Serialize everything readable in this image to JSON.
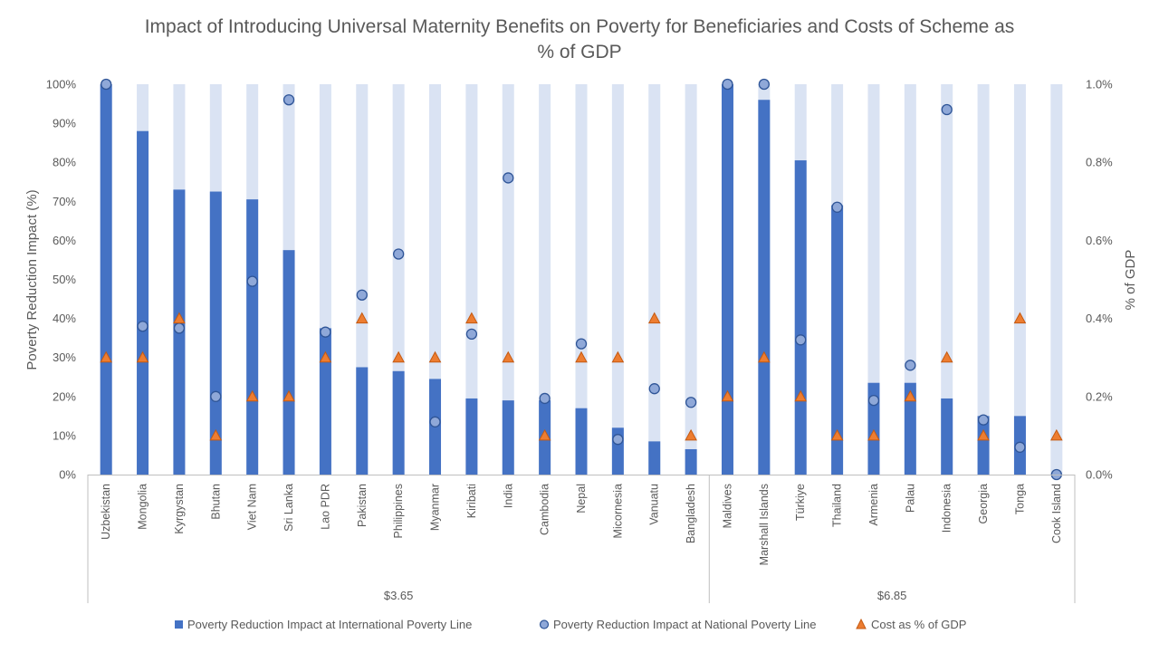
{
  "chart_data": {
    "type": "bar",
    "title": "Impact of Introducing Universal Maternity Benefits on Poverty for Beneficiaries and Costs of Scheme as % of GDP",
    "title_lines": [
      "Impact of Introducing Universal Maternity Benefits on Poverty for Beneficiaries and Costs of Scheme as",
      "% of GDP"
    ],
    "ylabel": "Poverty Reduction Impact (%)",
    "y2label": "% of GDP",
    "ylim": [
      0,
      100
    ],
    "y2lim": [
      0,
      1.0
    ],
    "yticks": [
      "0%",
      "10%",
      "20%",
      "30%",
      "40%",
      "50%",
      "60%",
      "70%",
      "80%",
      "90%",
      "100%"
    ],
    "y2ticks": [
      "0.0%",
      "0.2%",
      "0.4%",
      "0.6%",
      "0.8%",
      "1.0%"
    ],
    "groups": [
      {
        "label": "$3.65",
        "start": 0,
        "count": 17
      },
      {
        "label": "$6.85",
        "start": 17,
        "count": 10
      }
    ],
    "categories": [
      "Uzbekistan",
      "Mongolia",
      "Kyrgystan",
      "Bhutan",
      "Viet Nam",
      "Sri Lanka",
      "Lao PDR",
      "Pakistan",
      "Philippines",
      "Myanmar",
      "Kiribati",
      "India",
      "Cambodia",
      "Nepal",
      "Micornesia",
      "Vanuatu",
      "Bangladesh",
      "Maldives",
      "Marshall Islands",
      "Türkiye",
      "Thailand",
      "Armenia",
      "Palau",
      "Indonesia",
      "Georgia",
      "Tonga",
      "Cook Island"
    ],
    "series": [
      {
        "name": "Poverty Reduction Impact at International Poverty Line",
        "type": "bar",
        "color": "#4472c4",
        "background_color": "#dae3f3",
        "values": [
          100,
          88,
          73,
          72.5,
          70.5,
          57.5,
          37.5,
          27.5,
          26.5,
          24.5,
          19.5,
          19,
          19,
          17,
          12,
          8.5,
          6.5,
          100,
          96,
          80.5,
          69,
          23.5,
          23.5,
          19.5,
          15,
          15,
          0
        ]
      },
      {
        "name": "Poverty Reduction Impact at National Poverty Line",
        "type": "scatter",
        "marker": "circle",
        "color": "#8fa8d8",
        "values": [
          100,
          38,
          37.5,
          20,
          49.5,
          96,
          36.5,
          46,
          56.5,
          13.5,
          36,
          76,
          19.5,
          33.5,
          9,
          22,
          18.5,
          100,
          100,
          34.5,
          68.5,
          19,
          28,
          93.5,
          14,
          7,
          0
        ]
      },
      {
        "name": "Cost as % of GDP",
        "type": "scatter",
        "marker": "triangle",
        "axis": "secondary",
        "color": "#ed7d31",
        "values": [
          0.3,
          0.3,
          0.4,
          0.1,
          0.2,
          0.2,
          0.3,
          0.4,
          0.3,
          0.3,
          0.4,
          0.3,
          0.1,
          0.3,
          0.3,
          0.4,
          0.1,
          0.2,
          0.3,
          0.2,
          0.1,
          0.1,
          0.2,
          0.3,
          0.1,
          0.4,
          0.1
        ]
      }
    ],
    "legend_position": "bottom"
  }
}
